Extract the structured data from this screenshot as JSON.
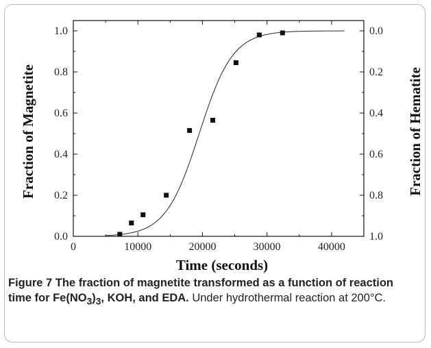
{
  "chart_data": {
    "type": "scatter",
    "title": "",
    "xlabel": "Time (seconds)",
    "ylabel_left": "Fraction of Magnetite",
    "ylabel_right": "Fraction of Hematite",
    "xlim": [
      0,
      45000
    ],
    "ylim": [
      0,
      1.05
    ],
    "y2lim": [
      1.0,
      -0.05
    ],
    "x_ticks": [
      0,
      10000,
      20000,
      30000,
      40000
    ],
    "x_tick_labels": [
      "0",
      "10000",
      "20000",
      "30000",
      "40000"
    ],
    "y_ticks": [
      0.0,
      0.2,
      0.4,
      0.6,
      0.8,
      1.0
    ],
    "y_tick_labels": [
      "0.0",
      "0.2",
      "0.4",
      "0.6",
      "0.8",
      "1.0"
    ],
    "y2_tick_labels": [
      "1.0",
      "0.8",
      "0.6",
      "0.4",
      "0.2",
      "0.0"
    ],
    "grid": false,
    "series": [
      {
        "marker": "square",
        "points": [
          {
            "x": 7200,
            "y": 0.01
          },
          {
            "x": 9000,
            "y": 0.065
          },
          {
            "x": 10800,
            "y": 0.105
          },
          {
            "x": 14400,
            "y": 0.2
          },
          {
            "x": 18000,
            "y": 0.515
          },
          {
            "x": 21600,
            "y": 0.565
          },
          {
            "x": 25200,
            "y": 0.845
          },
          {
            "x": 28800,
            "y": 0.98
          },
          {
            "x": 32400,
            "y": 0.99
          }
        ]
      },
      {
        "type": "line",
        "x_range": [
          5000,
          42000
        ],
        "model": "logistic",
        "midpoint": 19500,
        "scale": 2600
      }
    ]
  },
  "caption": {
    "label": "Figure 7",
    "title_part1": " The fraction of magnetite transformed as a function of reaction time for Fe(NO",
    "sub1": "3",
    ")": ")",
    "sub2": "3",
    "title_part2": ", KOH, and EDA.",
    "body": " Under hydrothermal reaction at 200°C."
  }
}
